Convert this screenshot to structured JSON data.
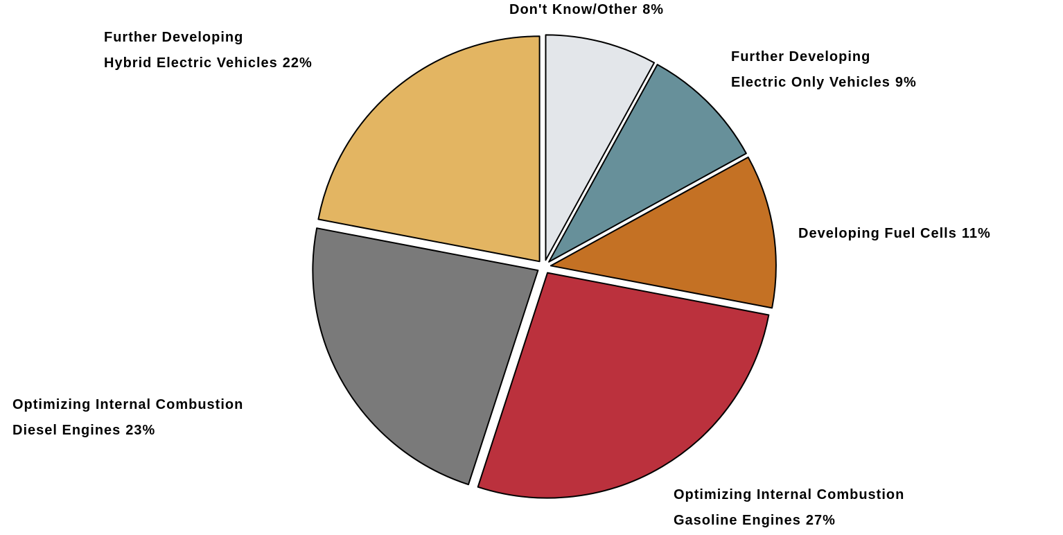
{
  "chart_data": {
    "type": "pie",
    "categories": [
      [
        "Don't Know/Other"
      ],
      [
        "Further Developing",
        "Electric Only Vehicles"
      ],
      [
        "Developing Fuel Cells"
      ],
      [
        "Optimizing Internal Combustion",
        "Gasoline Engines"
      ],
      [
        "Optimizing Internal Combustion",
        "Diesel Engines"
      ],
      [
        "Further Developing",
        "Hybrid Electric Vehicles"
      ]
    ],
    "values": [
      8,
      9,
      11,
      27,
      23,
      22
    ],
    "value_labels": [
      "8%",
      "9%",
      "11%",
      "27%",
      "23%",
      "22%"
    ],
    "colors": [
      "#e3e6ea",
      "#67909a",
      "#c47124",
      "#bb313d",
      "#7a7a7a",
      "#e3b562"
    ]
  }
}
